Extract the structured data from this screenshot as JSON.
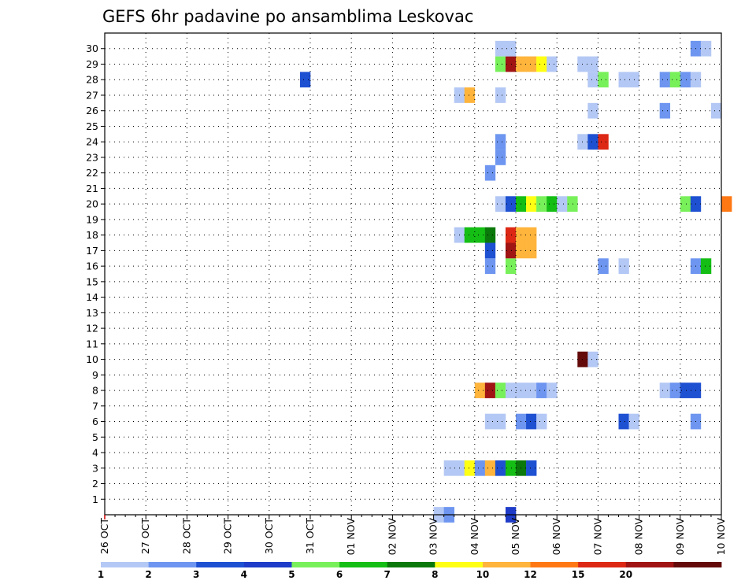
{
  "chart_data": {
    "type": "heatmap",
    "title": "GEFS 6hr padavine po ansamblima Leskovac",
    "y_ticks": [
      "1",
      "2",
      "3",
      "4",
      "5",
      "6",
      "7",
      "8",
      "9",
      "10",
      "11",
      "12",
      "13",
      "14",
      "15",
      "16",
      "17",
      "18",
      "19",
      "20",
      "21",
      "22",
      "23",
      "24",
      "25",
      "26",
      "27",
      "28",
      "29",
      "30"
    ],
    "x_ticks": [
      "26 OCT",
      "27 OCT",
      "28 OCT",
      "29 OCT",
      "30 OCT",
      "31 OCT",
      "01 NOV",
      "02 NOV",
      "03 NOV",
      "04 NOV",
      "05 NOV",
      "06 NOV",
      "07 NOV",
      "08 NOV",
      "09 NOV",
      "10 NOV"
    ],
    "grid": true,
    "legend_placement": "bottom",
    "legend": {
      "labels": [
        "1",
        "2",
        "3",
        "4",
        "5",
        "6",
        "7",
        "8",
        "10",
        "12",
        "15",
        "20"
      ],
      "colors": [
        "#b4c8f5",
        "#6e96f0",
        "#1e50d2",
        "#1e3cc8",
        "#78f05a",
        "#14be14",
        "#0a780a",
        "#ffff14",
        "#ffb43c",
        "#ff7814",
        "#dc2814",
        "#a01414",
        "#640a0a"
      ]
    },
    "cells": [
      {
        "m": 0,
        "s": 32,
        "c": 1
      },
      {
        "m": 0,
        "s": 33,
        "c": 2
      },
      {
        "m": 0,
        "s": 39,
        "c": 4
      },
      {
        "m": 3,
        "s": 33,
        "c": 1
      },
      {
        "m": 3,
        "s": 34,
        "c": 1
      },
      {
        "m": 3,
        "s": 35,
        "c": 8
      },
      {
        "m": 3,
        "s": 36,
        "c": 2
      },
      {
        "m": 3,
        "s": 37,
        "c": 9
      },
      {
        "m": 3,
        "s": 38,
        "c": 3
      },
      {
        "m": 3,
        "s": 39,
        "c": 6
      },
      {
        "m": 3,
        "s": 40,
        "c": 7
      },
      {
        "m": 3,
        "s": 41,
        "c": 3
      },
      {
        "m": 6,
        "s": 37,
        "c": 1
      },
      {
        "m": 6,
        "s": 38,
        "c": 1
      },
      {
        "m": 6,
        "s": 40,
        "c": 2
      },
      {
        "m": 6,
        "s": 41,
        "c": 3
      },
      {
        "m": 6,
        "s": 42,
        "c": 1
      },
      {
        "m": 6,
        "s": 50,
        "c": 3
      },
      {
        "m": 6,
        "s": 51,
        "c": 1
      },
      {
        "m": 6,
        "s": 57,
        "c": 2
      },
      {
        "m": 8,
        "s": 36,
        "c": 9
      },
      {
        "m": 8,
        "s": 37,
        "c": 12
      },
      {
        "m": 8,
        "s": 38,
        "c": 5
      },
      {
        "m": 8,
        "s": 39,
        "c": 1
      },
      {
        "m": 8,
        "s": 40,
        "c": 1
      },
      {
        "m": 8,
        "s": 41,
        "c": 1
      },
      {
        "m": 8,
        "s": 42,
        "c": 2
      },
      {
        "m": 8,
        "s": 43,
        "c": 1
      },
      {
        "m": 8,
        "s": 54,
        "c": 1
      },
      {
        "m": 8,
        "s": 55,
        "c": 2
      },
      {
        "m": 8,
        "s": 56,
        "c": 3
      },
      {
        "m": 8,
        "s": 57,
        "c": 3
      },
      {
        "m": 10,
        "s": 46,
        "c": 13
      },
      {
        "m": 10,
        "s": 47,
        "c": 1
      },
      {
        "m": 16,
        "s": 37,
        "c": 2
      },
      {
        "m": 16,
        "s": 39,
        "c": 5
      },
      {
        "m": 16,
        "s": 48,
        "c": 2
      },
      {
        "m": 16,
        "s": 50,
        "c": 1
      },
      {
        "m": 16,
        "s": 57,
        "c": 2
      },
      {
        "m": 16,
        "s": 58,
        "c": 6
      },
      {
        "m": 17,
        "s": 37,
        "c": 3
      },
      {
        "m": 17,
        "s": 39,
        "c": 12
      },
      {
        "m": 17,
        "s": 40,
        "c": 9
      },
      {
        "m": 17,
        "s": 41,
        "c": 9
      },
      {
        "m": 18,
        "s": 34,
        "c": 1
      },
      {
        "m": 18,
        "s": 35,
        "c": 6
      },
      {
        "m": 18,
        "s": 36,
        "c": 6
      },
      {
        "m": 18,
        "s": 37,
        "c": 7
      },
      {
        "m": 18,
        "s": 39,
        "c": 11
      },
      {
        "m": 18,
        "s": 40,
        "c": 9
      },
      {
        "m": 18,
        "s": 41,
        "c": 9
      },
      {
        "m": 20,
        "s": 38,
        "c": 1
      },
      {
        "m": 20,
        "s": 39,
        "c": 3
      },
      {
        "m": 20,
        "s": 40,
        "c": 6
      },
      {
        "m": 20,
        "s": 41,
        "c": 8
      },
      {
        "m": 20,
        "s": 42,
        "c": 5
      },
      {
        "m": 20,
        "s": 43,
        "c": 6
      },
      {
        "m": 20,
        "s": 44,
        "c": 1
      },
      {
        "m": 20,
        "s": 45,
        "c": 5
      },
      {
        "m": 20,
        "s": 56,
        "c": 5
      },
      {
        "m": 20,
        "s": 57,
        "c": 3
      },
      {
        "m": 20,
        "s": 60,
        "c": 10
      },
      {
        "m": 22,
        "s": 37,
        "c": 2
      },
      {
        "m": 23,
        "s": 38,
        "c": 2
      },
      {
        "m": 24,
        "s": 38,
        "c": 2
      },
      {
        "m": 24,
        "s": 46,
        "c": 1
      },
      {
        "m": 24,
        "s": 47,
        "c": 3
      },
      {
        "m": 24,
        "s": 48,
        "c": 11
      },
      {
        "m": 26,
        "s": 47,
        "c": 1
      },
      {
        "m": 26,
        "s": 54,
        "c": 2
      },
      {
        "m": 26,
        "s": 59,
        "c": 1
      },
      {
        "m": 27,
        "s": 34,
        "c": 1
      },
      {
        "m": 27,
        "s": 35,
        "c": 9
      },
      {
        "m": 27,
        "s": 38,
        "c": 1
      },
      {
        "m": 28,
        "s": 19,
        "c": 3
      },
      {
        "m": 28,
        "s": 47,
        "c": 1
      },
      {
        "m": 28,
        "s": 48,
        "c": 5
      },
      {
        "m": 28,
        "s": 50,
        "c": 1
      },
      {
        "m": 28,
        "s": 51,
        "c": 1
      },
      {
        "m": 28,
        "s": 54,
        "c": 2
      },
      {
        "m": 28,
        "s": 55,
        "c": 5
      },
      {
        "m": 28,
        "s": 56,
        "c": 2
      },
      {
        "m": 28,
        "s": 57,
        "c": 1
      },
      {
        "m": 29,
        "s": 38,
        "c": 5
      },
      {
        "m": 29,
        "s": 39,
        "c": 12
      },
      {
        "m": 29,
        "s": 40,
        "c": 9
      },
      {
        "m": 29,
        "s": 41,
        "c": 9
      },
      {
        "m": 29,
        "s": 42,
        "c": 8
      },
      {
        "m": 29,
        "s": 43,
        "c": 1
      },
      {
        "m": 29,
        "s": 46,
        "c": 1
      },
      {
        "m": 29,
        "s": 47,
        "c": 1
      },
      {
        "m": 30,
        "s": 38,
        "c": 1
      },
      {
        "m": 30,
        "s": 39,
        "c": 1
      },
      {
        "m": 30,
        "s": 57,
        "c": 2
      },
      {
        "m": 30,
        "s": 58,
        "c": 1
      }
    ]
  }
}
